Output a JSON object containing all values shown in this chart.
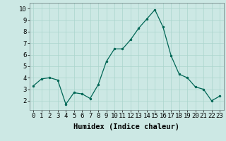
{
  "x": [
    0,
    1,
    2,
    3,
    4,
    5,
    6,
    7,
    8,
    9,
    10,
    11,
    12,
    13,
    14,
    15,
    16,
    17,
    18,
    19,
    20,
    21,
    22,
    23
  ],
  "y": [
    3.3,
    3.9,
    4.0,
    3.8,
    1.7,
    2.7,
    2.6,
    2.2,
    3.4,
    5.4,
    6.5,
    6.5,
    7.3,
    8.3,
    9.1,
    9.9,
    8.4,
    5.9,
    4.3,
    4.0,
    3.2,
    3.0,
    2.0,
    2.4
  ],
  "xlabel": "Humidex (Indice chaleur)",
  "bg_color": "#cce8e4",
  "grid_color": "#aad4cc",
  "line_color": "#006655",
  "marker_color": "#006655",
  "xlim": [
    -0.5,
    23.5
  ],
  "ylim": [
    1.2,
    10.5
  ],
  "yticks": [
    2,
    3,
    4,
    5,
    6,
    7,
    8,
    9,
    10
  ],
  "xticks": [
    0,
    1,
    2,
    3,
    4,
    5,
    6,
    7,
    8,
    9,
    10,
    11,
    12,
    13,
    14,
    15,
    16,
    17,
    18,
    19,
    20,
    21,
    22,
    23
  ],
  "tick_font_size": 6.5,
  "label_font_size": 7.5
}
